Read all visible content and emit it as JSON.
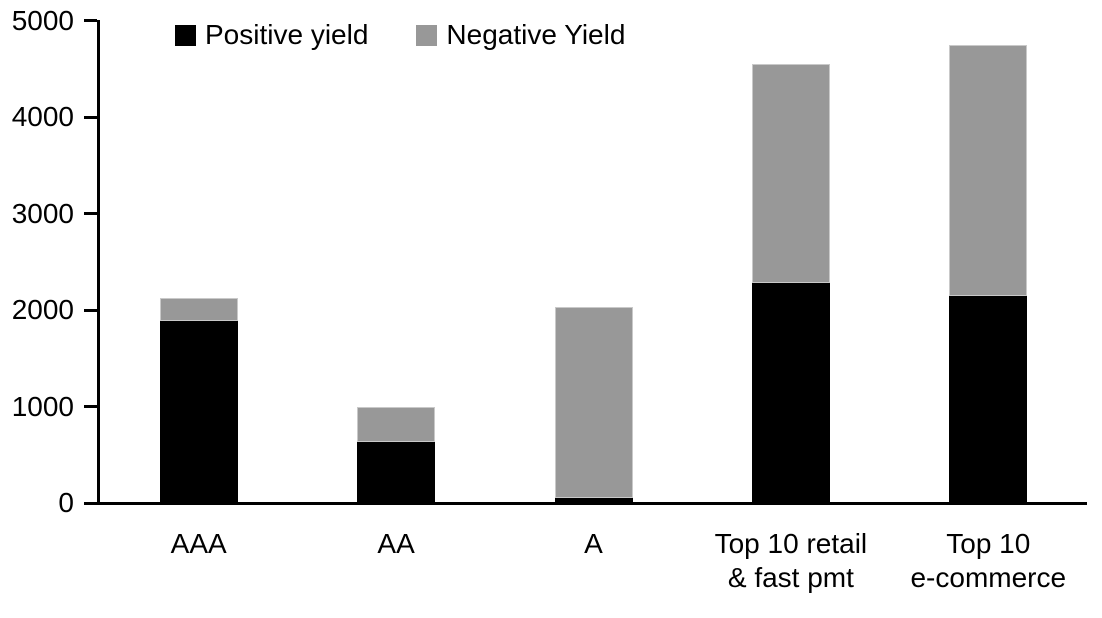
{
  "chart_data": {
    "type": "bar",
    "subtype": "stacked",
    "title": "",
    "xlabel": "",
    "ylabel": "",
    "categories": [
      "AAA",
      "AA",
      "A",
      "Top 10 retail & fast pmt",
      "Top 10 e-commerce"
    ],
    "category_label_lines": [
      [
        "AAA"
      ],
      [
        "AA"
      ],
      [
        "A"
      ],
      [
        "Top 10 retail",
        "& fast pmt"
      ],
      [
        "Top 10",
        "e-commerce"
      ]
    ],
    "series": [
      {
        "name": "Positive yield",
        "color": "#000000",
        "values": [
          1890,
          630,
          50,
          2280,
          2150
        ]
      },
      {
        "name": "Negative Yield",
        "color": "#989898",
        "values": [
          230,
          370,
          1980,
          2270,
          2600
        ]
      }
    ],
    "totals": [
      2120,
      1000,
      2030,
      4550,
      4750
    ],
    "ylim": [
      0,
      5000
    ],
    "yticks": [
      0,
      1000,
      2000,
      3000,
      4000,
      5000
    ],
    "ytick_labels": [
      "0",
      "1000",
      "2000",
      "3000",
      "4000",
      "5000"
    ],
    "grid": "off",
    "legend_position": "top"
  }
}
